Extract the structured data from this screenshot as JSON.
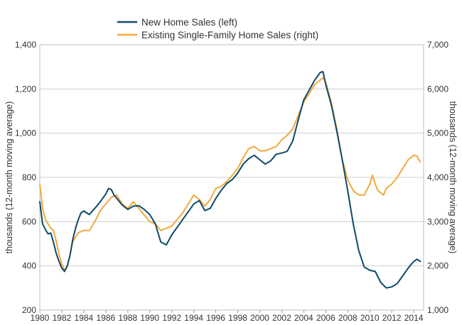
{
  "chart_data": {
    "type": "line",
    "title": "",
    "xlabel": "",
    "ylabel_left": "thousands (12-month moving average)",
    "ylabel_right": "thousands (12-month moving average)",
    "xlim": [
      1980,
      2014.9
    ],
    "ylim_left": [
      200,
      1400
    ],
    "ylim_right": [
      1000,
      7000
    ],
    "x_ticks": [
      1980,
      1982,
      1984,
      1986,
      1988,
      1990,
      1992,
      1994,
      1996,
      1998,
      2000,
      2002,
      2004,
      2006,
      2008,
      2010,
      2012,
      2014
    ],
    "y_ticks_left": [
      "200",
      "400",
      "600",
      "800",
      "1,000",
      "1,200",
      "1,400"
    ],
    "y_ticks_right": [
      "1,000",
      "2,000",
      "3,000",
      "4,000",
      "5,000",
      "6,000",
      "7,000"
    ],
    "grid": true,
    "legend_position": "top",
    "colors": {
      "new_home": "#0d4a6b",
      "existing": "#f2a93b"
    },
    "series": [
      {
        "name": "New Home Sales (left)",
        "axis": "left",
        "x": [
          1980.0,
          1980.25,
          1980.5,
          1980.75,
          1981.0,
          1981.25,
          1981.5,
          1981.75,
          1982.0,
          1982.25,
          1982.5,
          1982.75,
          1983.0,
          1983.25,
          1983.5,
          1983.75,
          1984.0,
          1984.5,
          1985.0,
          1985.5,
          1986.0,
          1986.25,
          1986.5,
          1986.75,
          1987.0,
          1987.5,
          1988.0,
          1988.5,
          1989.0,
          1989.5,
          1990.0,
          1990.5,
          1991.0,
          1991.5,
          1992.0,
          1992.5,
          1993.0,
          1993.5,
          1994.0,
          1994.5,
          1995.0,
          1995.5,
          1996.0,
          1996.5,
          1997.0,
          1997.5,
          1998.0,
          1998.5,
          1999.0,
          1999.5,
          2000.0,
          2000.5,
          2001.0,
          2001.5,
          2002.0,
          2002.5,
          2003.0,
          2003.5,
          2004.0,
          2004.5,
          2005.0,
          2005.5,
          2005.75,
          2006.0,
          2006.5,
          2007.0,
          2007.5,
          2008.0,
          2008.5,
          2009.0,
          2009.5,
          2010.0,
          2010.5,
          2011.0,
          2011.5,
          2012.0,
          2012.5,
          2013.0,
          2013.5,
          2014.0,
          2014.3,
          2014.6
        ],
        "values": [
          690,
          590,
          565,
          545,
          548,
          505,
          455,
          420,
          390,
          375,
          400,
          450,
          520,
          570,
          610,
          640,
          648,
          632,
          660,
          690,
          725,
          750,
          745,
          720,
          705,
          675,
          655,
          670,
          672,
          655,
          632,
          590,
          508,
          495,
          540,
          575,
          610,
          645,
          680,
          695,
          650,
          660,
          705,
          742,
          772,
          790,
          820,
          860,
          885,
          900,
          880,
          860,
          875,
          905,
          910,
          918,
          965,
          1060,
          1150,
          1195,
          1240,
          1275,
          1278,
          1220,
          1130,
          1010,
          880,
          740,
          590,
          470,
          395,
          380,
          375,
          325,
          300,
          305,
          320,
          355,
          390,
          420,
          430,
          420
        ]
      },
      {
        "name": "Existing Single-Family Home Sales (right)",
        "axis": "right",
        "x": [
          1980.0,
          1980.25,
          1980.5,
          1980.75,
          1981.0,
          1981.25,
          1981.5,
          1981.75,
          1982.0,
          1982.25,
          1982.5,
          1982.75,
          1983.0,
          1983.5,
          1984.0,
          1984.5,
          1985.0,
          1985.5,
          1986.0,
          1986.5,
          1987.0,
          1987.5,
          1988.0,
          1988.5,
          1989.0,
          1989.5,
          1990.0,
          1990.5,
          1991.0,
          1991.5,
          1992.0,
          1992.5,
          1993.0,
          1993.5,
          1994.0,
          1994.5,
          1995.0,
          1995.5,
          1996.0,
          1996.5,
          1997.0,
          1997.5,
          1998.0,
          1998.5,
          1999.0,
          1999.5,
          2000.0,
          2000.5,
          2001.0,
          2001.5,
          2002.0,
          2002.5,
          2003.0,
          2003.5,
          2004.0,
          2004.5,
          2005.0,
          2005.5,
          2005.75,
          2006.0,
          2006.5,
          2007.0,
          2007.5,
          2008.0,
          2008.5,
          2009.0,
          2009.5,
          2010.0,
          2010.25,
          2010.5,
          2010.75,
          2011.0,
          2011.25,
          2011.5,
          2012.0,
          2012.5,
          2013.0,
          2013.5,
          2014.0,
          2014.3,
          2014.6
        ],
        "values": [
          3850,
          3300,
          3050,
          2950,
          2850,
          2800,
          2550,
          2250,
          2050,
          1900,
          2000,
          2250,
          2550,
          2750,
          2800,
          2800,
          3000,
          3250,
          3400,
          3550,
          3600,
          3400,
          3300,
          3450,
          3300,
          3150,
          3000,
          2950,
          2800,
          2850,
          2900,
          3050,
          3200,
          3400,
          3600,
          3500,
          3350,
          3500,
          3750,
          3800,
          3900,
          4050,
          4200,
          4450,
          4650,
          4700,
          4600,
          4600,
          4650,
          4700,
          4850,
          4950,
          5100,
          5400,
          5700,
          5900,
          6100,
          6200,
          6250,
          6150,
          5700,
          5100,
          4400,
          3950,
          3700,
          3600,
          3600,
          3850,
          4050,
          3850,
          3700,
          3650,
          3600,
          3750,
          3850,
          4000,
          4200,
          4400,
          4500,
          4480,
          4350
        ]
      }
    ]
  }
}
